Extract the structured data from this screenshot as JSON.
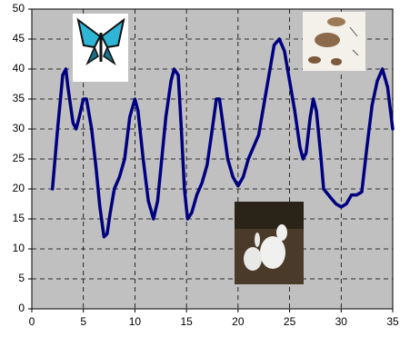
{
  "chart_data": {
    "type": "line",
    "x": [
      2,
      2.5,
      3,
      3.3,
      3.5,
      4,
      4.3,
      4.6,
      5,
      5.3,
      5.8,
      6.2,
      6.6,
      7,
      7.3,
      7.6,
      8,
      8.5,
      9,
      9.5,
      10,
      10.3,
      10.8,
      11.3,
      11.8,
      12.2,
      12.6,
      13,
      13.5,
      13.8,
      14.2,
      14.5,
      14.8,
      15.1,
      15.5,
      16,
      16.5,
      17,
      17.5,
      17.9,
      18.2,
      18.6,
      19,
      19.5,
      20,
      20.5,
      21,
      21.5,
      22,
      22.5,
      23,
      23.5,
      24,
      24.5,
      25,
      25.5,
      26,
      26.3,
      26.6,
      27,
      27.3,
      27.6,
      28,
      28.3,
      29,
      29.5,
      30,
      30.5,
      31,
      31.5,
      32,
      32.5,
      33,
      33.5,
      34,
      34.5,
      35
    ],
    "values": [
      20,
      30,
      39,
      40,
      37,
      31,
      30,
      32,
      35,
      35,
      30,
      24,
      17,
      12,
      12.5,
      16,
      20,
      22,
      25,
      32,
      35,
      33,
      25,
      18,
      15,
      18,
      25,
      32,
      38,
      40,
      39,
      30,
      20,
      15,
      16,
      19,
      21,
      24,
      30,
      35,
      35,
      30,
      25,
      22,
      20.5,
      22,
      25,
      27,
      29,
      34,
      39,
      44,
      45,
      43,
      38,
      33,
      27,
      25,
      26,
      32,
      35,
      33,
      26,
      20,
      18.5,
      17.5,
      17,
      17.5,
      19,
      19,
      19.5,
      27,
      34,
      38,
      40,
      37,
      30
    ],
    "color": "#000080",
    "xlim": [
      0,
      35
    ],
    "xticks": [
      0,
      5,
      10,
      15,
      20,
      25,
      30,
      35
    ],
    "ylim": [
      0,
      50
    ],
    "yticks": [
      0,
      5,
      10,
      15,
      20,
      25,
      30,
      35,
      40,
      45,
      50
    ],
    "grid": true
  }
}
